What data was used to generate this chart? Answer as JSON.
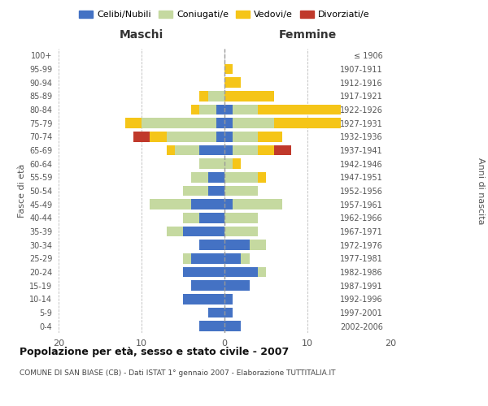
{
  "age_groups": [
    "0-4",
    "5-9",
    "10-14",
    "15-19",
    "20-24",
    "25-29",
    "30-34",
    "35-39",
    "40-44",
    "45-49",
    "50-54",
    "55-59",
    "60-64",
    "65-69",
    "70-74",
    "75-79",
    "80-84",
    "85-89",
    "90-94",
    "95-99",
    "100+"
  ],
  "birth_years": [
    "2002-2006",
    "1997-2001",
    "1992-1996",
    "1987-1991",
    "1982-1986",
    "1977-1981",
    "1972-1976",
    "1967-1971",
    "1962-1966",
    "1957-1961",
    "1952-1956",
    "1947-1951",
    "1942-1946",
    "1937-1941",
    "1932-1936",
    "1927-1931",
    "1922-1926",
    "1917-1921",
    "1912-1916",
    "1907-1911",
    "≤ 1906"
  ],
  "maschi": {
    "celibi": [
      3,
      2,
      5,
      4,
      5,
      4,
      3,
      5,
      3,
      4,
      2,
      2,
      0,
      3,
      1,
      1,
      1,
      0,
      0,
      0,
      0
    ],
    "coniugati": [
      0,
      0,
      0,
      0,
      0,
      1,
      0,
      2,
      2,
      5,
      3,
      2,
      3,
      3,
      6,
      9,
      2,
      2,
      0,
      0,
      0
    ],
    "vedovi": [
      0,
      0,
      0,
      0,
      0,
      0,
      0,
      0,
      0,
      0,
      0,
      0,
      0,
      1,
      2,
      2,
      1,
      1,
      0,
      0,
      0
    ],
    "divorziati": [
      0,
      0,
      0,
      0,
      0,
      0,
      0,
      0,
      0,
      0,
      0,
      0,
      0,
      0,
      2,
      0,
      0,
      0,
      0,
      0,
      0
    ]
  },
  "femmine": {
    "nubili": [
      2,
      1,
      1,
      3,
      4,
      2,
      3,
      0,
      0,
      1,
      0,
      0,
      0,
      1,
      1,
      1,
      1,
      0,
      0,
      0,
      0
    ],
    "coniugate": [
      0,
      0,
      0,
      0,
      1,
      1,
      2,
      4,
      4,
      6,
      4,
      4,
      1,
      3,
      3,
      5,
      3,
      0,
      0,
      0,
      0
    ],
    "vedove": [
      0,
      0,
      0,
      0,
      0,
      0,
      0,
      0,
      0,
      0,
      0,
      1,
      1,
      2,
      3,
      8,
      10,
      6,
      2,
      1,
      0
    ],
    "divorziate": [
      0,
      0,
      0,
      0,
      0,
      0,
      0,
      0,
      0,
      0,
      0,
      0,
      0,
      2,
      0,
      0,
      0,
      0,
      0,
      0,
      0
    ]
  },
  "colors": {
    "celibi": "#4472c4",
    "coniugati": "#c5d9a0",
    "vedovi": "#f5c518",
    "divorziati": "#c0392b"
  },
  "title": "Popolazione per età, sesso e stato civile - 2007",
  "subtitle": "COMUNE DI SAN BIASE (CB) - Dati ISTAT 1° gennaio 2007 - Elaborazione TUTTITALIA.IT",
  "ylabel_left": "Fasce di età",
  "ylabel_right": "Anni di nascita",
  "xlabel_left": "Maschi",
  "xlabel_right": "Femmine",
  "xlim": 20,
  "background_color": "#ffffff",
  "grid_color": "#bbbbbb"
}
